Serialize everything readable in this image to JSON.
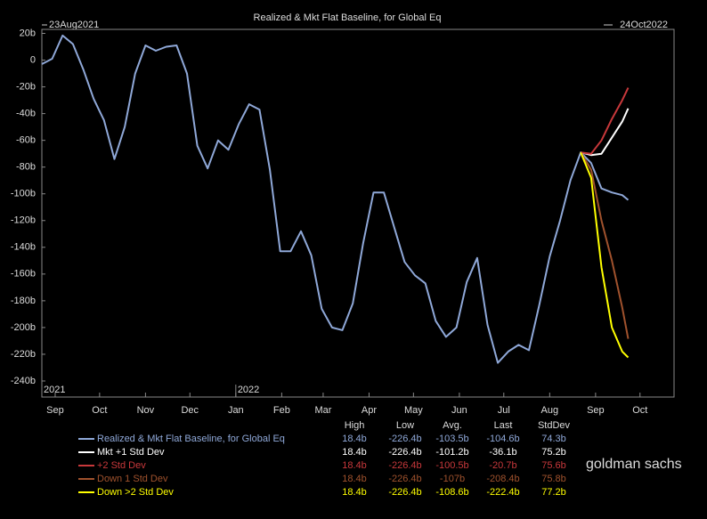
{
  "chart_data": {
    "type": "line",
    "title": "Realized & Mkt Flat Baseline, for Global Eq",
    "start_label": "23Aug2021",
    "end_label": "24Oct2022",
    "x": [
      "2021-08-23",
      "2021-08-30",
      "2021-09-06",
      "2021-09-13",
      "2021-09-20",
      "2021-09-27",
      "2021-10-04",
      "2021-10-11",
      "2021-10-18",
      "2021-10-25",
      "2021-11-01",
      "2021-11-08",
      "2021-11-15",
      "2021-11-22",
      "2021-11-29",
      "2021-12-06",
      "2021-12-13",
      "2021-12-20",
      "2021-12-27",
      "2022-01-03",
      "2022-01-10",
      "2022-01-17",
      "2022-01-24",
      "2022-01-31",
      "2022-02-07",
      "2022-02-14",
      "2022-02-21",
      "2022-02-28",
      "2022-03-07",
      "2022-03-14",
      "2022-03-21",
      "2022-03-28",
      "2022-04-04",
      "2022-04-11",
      "2022-04-18",
      "2022-04-25",
      "2022-05-02",
      "2022-05-09",
      "2022-05-16",
      "2022-05-23",
      "2022-05-30",
      "2022-06-06",
      "2022-06-13",
      "2022-06-20",
      "2022-06-27",
      "2022-07-04",
      "2022-07-11",
      "2022-07-18",
      "2022-07-25",
      "2022-08-01",
      "2022-08-08",
      "2022-08-15",
      "2022-08-22",
      "2022-08-29",
      "2022-09-05",
      "2022-09-12",
      "2022-09-19",
      "2022-09-23"
    ],
    "series": [
      {
        "name": "Realized & Mkt Flat Baseline, for Global Eq",
        "color": "#8fa8d8",
        "values": [
          -3,
          1,
          18.4,
          12,
          -7,
          -29,
          -45,
          -74,
          -50,
          -10,
          11,
          7,
          10,
          11,
          -10,
          -64,
          -81,
          -60,
          -67,
          -48,
          -33,
          -37,
          -82,
          -143,
          -143,
          -128,
          -146,
          -186,
          -200,
          -202,
          -182,
          -137,
          -99,
          -99,
          -125,
          -151,
          -161,
          -167,
          -195,
          -207,
          -200,
          -166,
          -148,
          -198,
          -226.4,
          -218,
          -213,
          -217,
          -183,
          -147,
          -120,
          -90,
          -69,
          -77,
          -96,
          -99,
          -101,
          -104.6
        ]
      },
      {
        "name": "Mkt +1 Std Dev",
        "color": "#ffffff",
        "values": [
          null,
          null,
          null,
          null,
          null,
          null,
          null,
          null,
          null,
          null,
          null,
          null,
          null,
          null,
          null,
          null,
          null,
          null,
          null,
          null,
          null,
          null,
          null,
          null,
          null,
          null,
          null,
          null,
          null,
          null,
          null,
          null,
          null,
          null,
          null,
          null,
          null,
          null,
          null,
          null,
          null,
          null,
          null,
          null,
          null,
          null,
          null,
          null,
          null,
          null,
          null,
          null,
          -69,
          -71,
          -70,
          -58,
          -46,
          -36.1
        ]
      },
      {
        "name": "+2 Std Dev",
        "color": "#c8383b",
        "values": [
          null,
          null,
          null,
          null,
          null,
          null,
          null,
          null,
          null,
          null,
          null,
          null,
          null,
          null,
          null,
          null,
          null,
          null,
          null,
          null,
          null,
          null,
          null,
          null,
          null,
          null,
          null,
          null,
          null,
          null,
          null,
          null,
          null,
          null,
          null,
          null,
          null,
          null,
          null,
          null,
          null,
          null,
          null,
          null,
          null,
          null,
          null,
          null,
          null,
          null,
          null,
          null,
          -69,
          -70,
          -60,
          -44,
          -30,
          -20.7
        ]
      },
      {
        "name": "Down 1 Std Dev",
        "color": "#a0522d",
        "values": [
          null,
          null,
          null,
          null,
          null,
          null,
          null,
          null,
          null,
          null,
          null,
          null,
          null,
          null,
          null,
          null,
          null,
          null,
          null,
          null,
          null,
          null,
          null,
          null,
          null,
          null,
          null,
          null,
          null,
          null,
          null,
          null,
          null,
          null,
          null,
          null,
          null,
          null,
          null,
          null,
          null,
          null,
          null,
          null,
          null,
          null,
          null,
          null,
          null,
          null,
          null,
          null,
          -69,
          -82,
          -120,
          -150,
          -185,
          -208.4
        ]
      },
      {
        "name": "Down >2 Std Dev",
        "color": "#ffff00",
        "values": [
          null,
          null,
          null,
          null,
          null,
          null,
          null,
          null,
          null,
          null,
          null,
          null,
          null,
          null,
          null,
          null,
          null,
          null,
          null,
          null,
          null,
          null,
          null,
          null,
          null,
          null,
          null,
          null,
          null,
          null,
          null,
          null,
          null,
          null,
          null,
          null,
          null,
          null,
          null,
          null,
          null,
          null,
          null,
          null,
          null,
          null,
          null,
          null,
          null,
          null,
          null,
          null,
          -69,
          -88,
          -155,
          -200,
          -218,
          -222.4
        ]
      }
    ],
    "xlim": [
      "2021-08-23",
      "2022-10-24"
    ],
    "xticks": [
      {
        "value": "2021-09-01",
        "label": "Sep"
      },
      {
        "value": "2021-10-01",
        "label": "Oct"
      },
      {
        "value": "2021-11-01",
        "label": "Nov"
      },
      {
        "value": "2021-12-01",
        "label": "Dec"
      },
      {
        "value": "2022-01-01",
        "label": "Jan"
      },
      {
        "value": "2022-02-01",
        "label": "Feb"
      },
      {
        "value": "2022-03-01",
        "label": "Mar"
      },
      {
        "value": "2022-04-01",
        "label": "Apr"
      },
      {
        "value": "2022-05-01",
        "label": "May"
      },
      {
        "value": "2022-06-01",
        "label": "Jun"
      },
      {
        "value": "2022-07-01",
        "label": "Jul"
      },
      {
        "value": "2022-08-01",
        "label": "Aug"
      },
      {
        "value": "2022-09-01",
        "label": "Sep"
      },
      {
        "value": "2022-10-01",
        "label": "Oct"
      }
    ],
    "year_ticks": [
      {
        "value": "2021-08-23",
        "label": "2021"
      },
      {
        "value": "2022-01-01",
        "label": "2022"
      }
    ],
    "ylim": [
      -252,
      23
    ],
    "yticks": [
      {
        "value": 20,
        "label": "20b"
      },
      0,
      {
        "value": -20,
        "label": "-20b"
      },
      {
        "value": -40,
        "label": "-40b"
      },
      {
        "value": -60,
        "label": "-60b"
      },
      {
        "value": -80,
        "label": "-80b"
      },
      {
        "value": -100,
        "label": "-100b"
      },
      {
        "value": -120,
        "label": "-120b"
      },
      {
        "value": -140,
        "label": "-140b"
      },
      {
        "value": -160,
        "label": "-160b"
      },
      {
        "value": -180,
        "label": "-180b"
      },
      {
        "value": -200,
        "label": "-200b"
      },
      {
        "value": -220,
        "label": "-220b"
      },
      {
        "value": -240,
        "label": "-240b"
      }
    ],
    "grid": false
  },
  "stats": {
    "columns": [
      "High",
      "Low",
      "Avg.",
      "Last",
      "StdDev"
    ],
    "rows": [
      [
        "18.4b",
        "-226.4b",
        "-103.5b",
        "-104.6b",
        "74.3b"
      ],
      [
        "18.4b",
        "-226.4b",
        "-101.2b",
        "-36.1b",
        "75.2b"
      ],
      [
        "18.4b",
        "-226.4b",
        "-100.5b",
        "-20.7b",
        "75.6b"
      ],
      [
        "18.4b",
        "-226.4b",
        "-107b",
        "-208.4b",
        "75.8b"
      ],
      [
        "18.4b",
        "-226.4b",
        "-108.6b",
        "-222.4b",
        "77.2b"
      ]
    ]
  },
  "watermark": "goldman sachs"
}
